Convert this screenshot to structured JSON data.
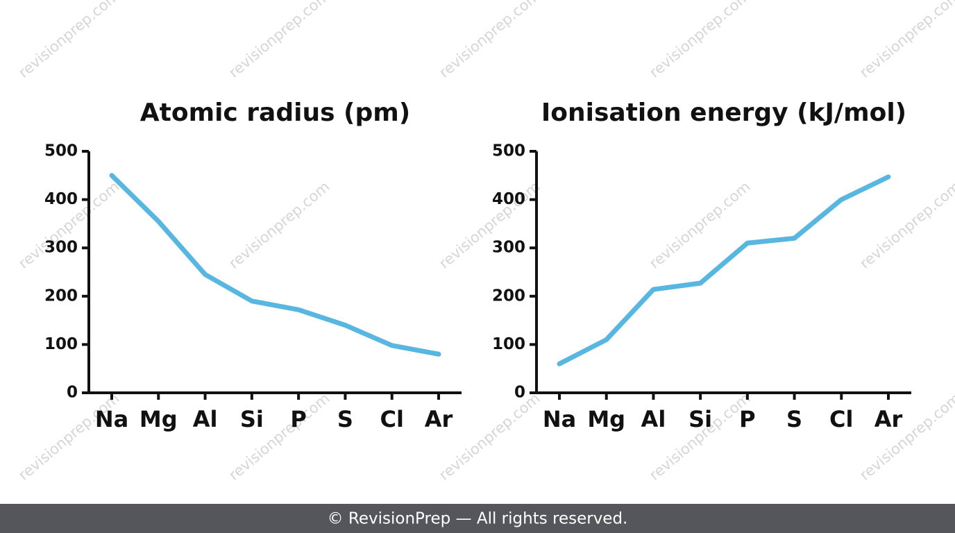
{
  "chart_data": [
    {
      "type": "line",
      "title": "Atomic radius (pm)",
      "categories": [
        "Na",
        "Mg",
        "Al",
        "Si",
        "P",
        "S",
        "Cl",
        "Ar"
      ],
      "values": [
        450,
        355,
        245,
        190,
        172,
        140,
        98,
        80
      ],
      "color": "#58b7e0",
      "ylim": [
        0,
        500
      ],
      "yticks": [
        0,
        100,
        200,
        300,
        400,
        500
      ],
      "grid": false
    },
    {
      "type": "line",
      "title": "Ionisation energy (kJ/mol)",
      "categories": [
        "Na",
        "Mg",
        "Al",
        "Si",
        "P",
        "S",
        "Cl",
        "Ar"
      ],
      "values": [
        60,
        110,
        214,
        227,
        310,
        320,
        400,
        447
      ],
      "color": "#58b7e0",
      "ylim": [
        0,
        500
      ],
      "yticks": [
        0,
        100,
        200,
        300,
        400,
        500
      ],
      "grid": false
    }
  ],
  "watermark": "revisionprep.com",
  "footer": "© RevisionPrep — All rights reserved."
}
